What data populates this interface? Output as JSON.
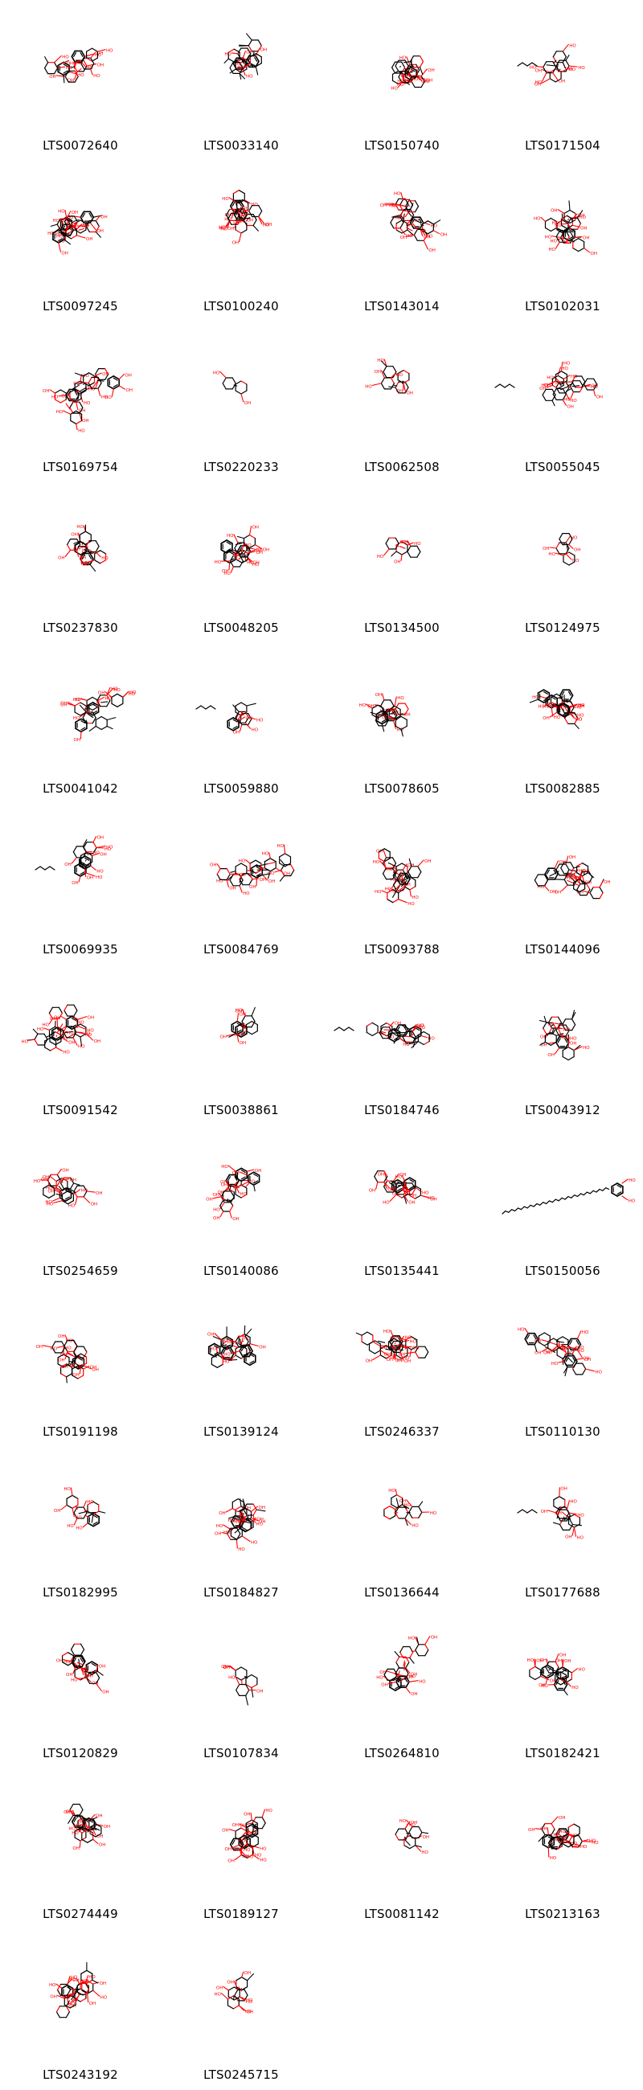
{
  "molecules": [
    {
      "id": "LTS0072640",
      "size": "large"
    },
    {
      "id": "LTS0033140",
      "size": "large"
    },
    {
      "id": "LTS0150740",
      "size": "large"
    },
    {
      "id": "LTS0171504",
      "size": "medium"
    },
    {
      "id": "LTS0097245",
      "size": "large"
    },
    {
      "id": "LTS0100240",
      "size": "large"
    },
    {
      "id": "LTS0143014",
      "size": "large"
    },
    {
      "id": "LTS0102031",
      "size": "large"
    },
    {
      "id": "LTS0169754",
      "size": "large"
    },
    {
      "id": "LTS0220233",
      "size": "tiny"
    },
    {
      "id": "LTS0062508",
      "size": "small"
    },
    {
      "id": "LTS0055045",
      "size": "wide"
    },
    {
      "id": "LTS0237830",
      "size": "large"
    },
    {
      "id": "LTS0048205",
      "size": "large"
    },
    {
      "id": "LTS0134500",
      "size": "small"
    },
    {
      "id": "LTS0124975",
      "size": "small"
    },
    {
      "id": "LTS0041042",
      "size": "large"
    },
    {
      "id": "LTS0059880",
      "size": "medium"
    },
    {
      "id": "LTS0078605",
      "size": "large"
    },
    {
      "id": "LTS0082885",
      "size": "large"
    },
    {
      "id": "LTS0069935",
      "size": "medium"
    },
    {
      "id": "LTS0084769",
      "size": "large"
    },
    {
      "id": "LTS0093788",
      "size": "large"
    },
    {
      "id": "LTS0144096",
      "size": "large"
    },
    {
      "id": "LTS0091542",
      "size": "large"
    },
    {
      "id": "LTS0038861",
      "size": "small"
    },
    {
      "id": "LTS0184746",
      "size": "wide"
    },
    {
      "id": "LTS0043912",
      "size": "large"
    },
    {
      "id": "LTS0254659",
      "size": "large"
    },
    {
      "id": "LTS0140086",
      "size": "large"
    },
    {
      "id": "LTS0135441",
      "size": "large"
    },
    {
      "id": "LTS0150056",
      "size": "chain"
    },
    {
      "id": "LTS0191198",
      "size": "large"
    },
    {
      "id": "LTS0139124",
      "size": "large"
    },
    {
      "id": "LTS0246337",
      "size": "large"
    },
    {
      "id": "LTS0110130",
      "size": "large"
    },
    {
      "id": "LTS0182995",
      "size": "small"
    },
    {
      "id": "LTS0184827",
      "size": "large"
    },
    {
      "id": "LTS0136644",
      "size": "small"
    },
    {
      "id": "LTS0177688",
      "size": "medium"
    },
    {
      "id": "LTS0120829",
      "size": "large"
    },
    {
      "id": "LTS0107834",
      "size": "small"
    },
    {
      "id": "LTS0264810",
      "size": "large"
    },
    {
      "id": "LTS0182421",
      "size": "large"
    },
    {
      "id": "LTS0274449",
      "size": "large"
    },
    {
      "id": "LTS0189127",
      "size": "large"
    },
    {
      "id": "LTS0081142",
      "size": "small"
    },
    {
      "id": "LTS0213163",
      "size": "large"
    },
    {
      "id": "LTS0243192",
      "size": "large"
    },
    {
      "id": "LTS0245715",
      "size": "small"
    }
  ],
  "colors": {
    "bond": "#000000",
    "heteroatom": "#ff0000",
    "label": "#000000"
  }
}
